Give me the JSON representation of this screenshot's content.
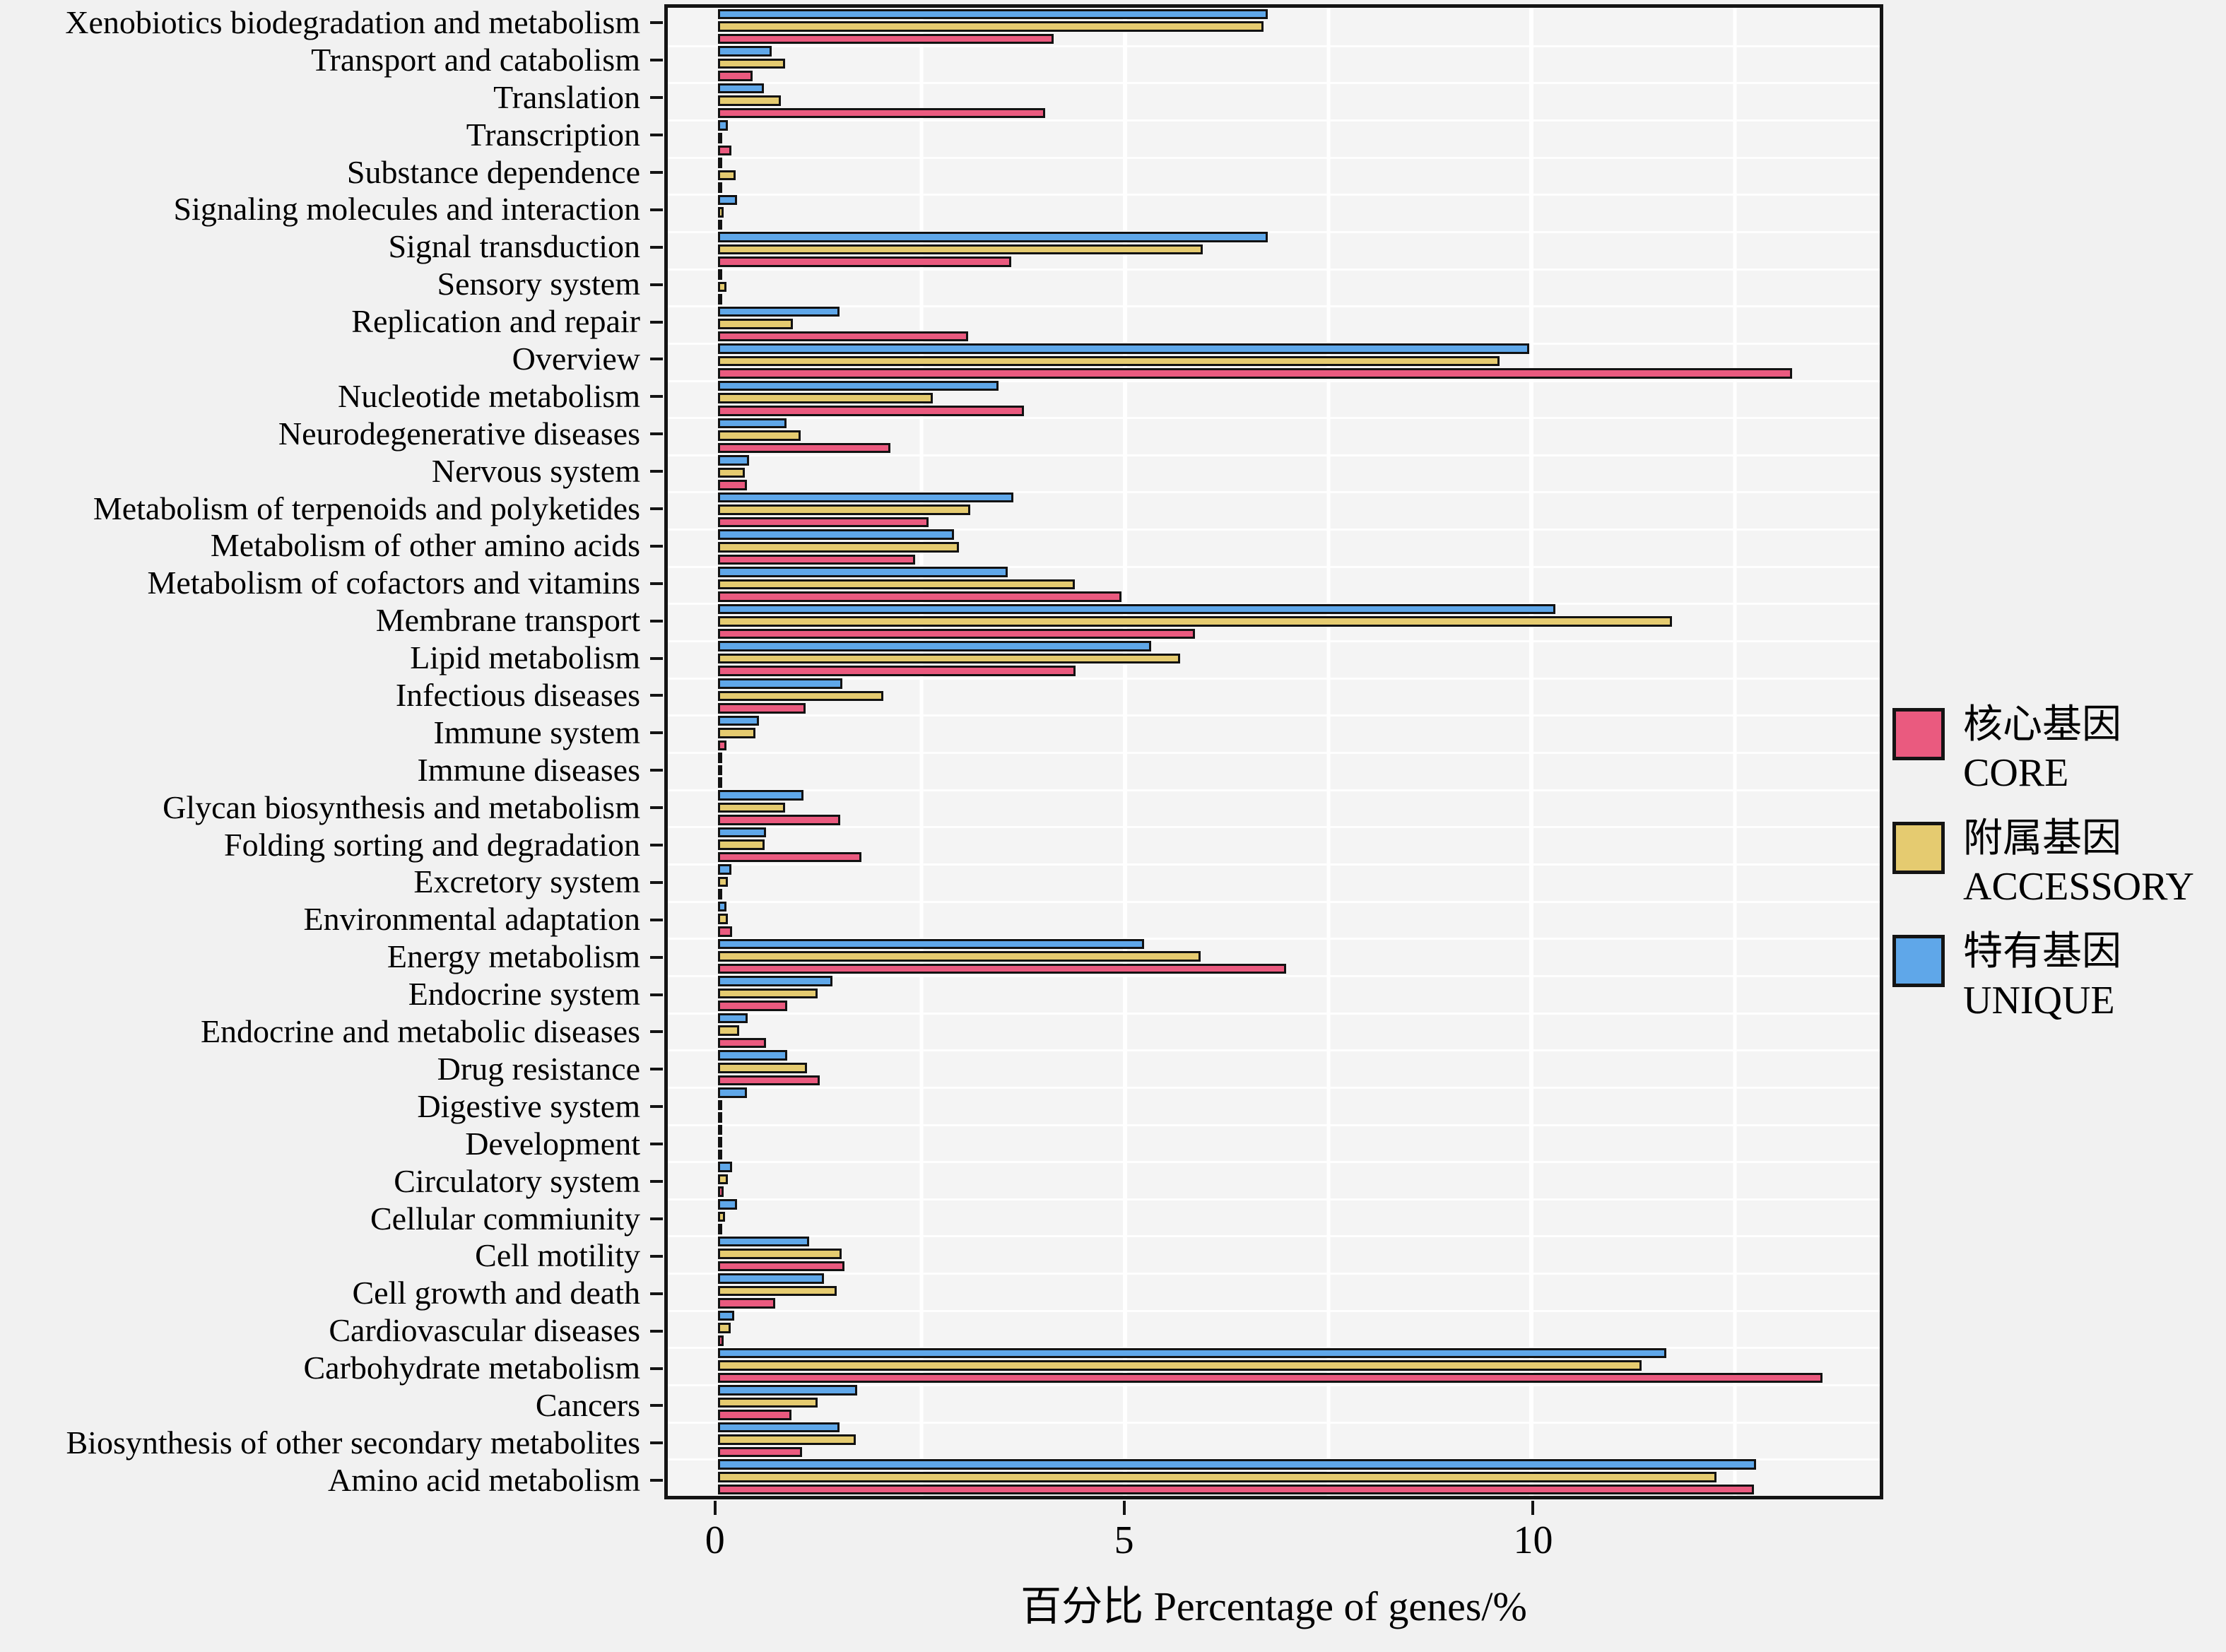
{
  "chart_data": {
    "type": "bar",
    "orientation": "horizontal",
    "title": "",
    "xlabel": "百分比 Percentage of genes/%",
    "ylabel": "",
    "x_ticks": [
      {
        "label": "0",
        "value": 0
      },
      {
        "label": "5",
        "value": 5
      },
      {
        "label": "10",
        "value": 10
      }
    ],
    "gridline_values": [
      2.5,
      5,
      7.5,
      10,
      12.5
    ],
    "xlim": [
      -0.62,
      14.28
    ],
    "grid": "on",
    "legend_position": "right-center",
    "categories": [
      "Xenobiotics biodegradation and metabolism",
      "Transport and catabolism",
      "Translation",
      "Transcription",
      "Substance dependence",
      "Signaling molecules and interaction",
      "Signal transduction",
      "Sensory system",
      "Replication and repair",
      "Overview",
      "Nucleotide metabolism",
      "Neurodegenerative diseases",
      "Nervous system",
      "Metabolism of terpenoids and polyketides",
      "Metabolism of other amino acids",
      "Metabolism of cofactors and vitamins",
      "Membrane transport",
      "Lipid metabolism",
      "Infectious diseases",
      "Immune system",
      "Immune diseases",
      "Glycan biosynthesis and metabolism",
      "Folding sorting and degradation",
      "Excretory system",
      "Environmental adaptation",
      "Energy metabolism",
      "Endocrine system",
      "Endocrine and metabolic diseases",
      "Drug resistance",
      "Digestive system",
      "Development",
      "Circulatory system",
      "Cellular commiunity",
      "Cell motility",
      "Cell growth and death",
      "Cardiovascular diseases",
      "Carbohydrate metabolism",
      "Cancers",
      "Biosynthesis of other secondary metabolites",
      "Amino acid metabolism"
    ],
    "series": [
      {
        "id": "core",
        "name_cn": "核心基因",
        "name_en": "CORE",
        "color": "#ea5a7f",
        "values": [
          4.12,
          0.42,
          4.02,
          0.16,
          0.03,
          0.05,
          3.6,
          0.03,
          3.07,
          13.2,
          3.76,
          2.12,
          0.35,
          2.59,
          2.42,
          4.96,
          5.86,
          4.39,
          1.07,
          0.1,
          0.02,
          1.5,
          1.76,
          0.05,
          0.17,
          6.98,
          0.85,
          0.59,
          1.25,
          0.04,
          0.03,
          0.07,
          0.03,
          1.55,
          0.7,
          0.07,
          13.58,
          0.9,
          1.03,
          12.73
        ]
      },
      {
        "id": "accessory",
        "name_cn": "附属基因",
        "name_en": "ACCESSORY",
        "color": "#e5cb70",
        "values": [
          6.7,
          0.82,
          0.77,
          0.04,
          0.21,
          0.07,
          5.96,
          0.1,
          0.92,
          9.61,
          2.64,
          1.01,
          0.33,
          3.1,
          2.96,
          4.38,
          11.73,
          5.68,
          2.03,
          0.46,
          0.02,
          0.82,
          0.57,
          0.12,
          0.12,
          5.93,
          1.22,
          0.26,
          1.09,
          0.05,
          0.02,
          0.12,
          0.08,
          1.52,
          1.46,
          0.15,
          11.35,
          1.22,
          1.69,
          12.27
        ]
      },
      {
        "id": "unique",
        "name_cn": "特有基因",
        "name_en": "UNIQUE",
        "color": "#5fa7e9",
        "values": [
          6.76,
          0.66,
          0.56,
          0.12,
          0.05,
          0.23,
          6.76,
          0.03,
          1.49,
          9.97,
          3.45,
          0.84,
          0.38,
          3.63,
          2.9,
          3.56,
          10.29,
          5.32,
          1.53,
          0.5,
          0.02,
          1.05,
          0.59,
          0.16,
          0.1,
          5.24,
          1.4,
          0.36,
          0.85,
          0.35,
          0.02,
          0.17,
          0.23,
          1.12,
          1.3,
          0.2,
          11.66,
          1.71,
          1.49,
          12.76
        ]
      }
    ],
    "bar_stack_order_top_to_bottom": [
      "unique",
      "accessory",
      "core"
    ]
  },
  "colors": {
    "page_background": "#f1f1f1",
    "panel_background": "#f4f4f4",
    "gridline": "#ffffff",
    "bar_border": "#121212",
    "panel_border": "#141414",
    "text": "#000000"
  }
}
